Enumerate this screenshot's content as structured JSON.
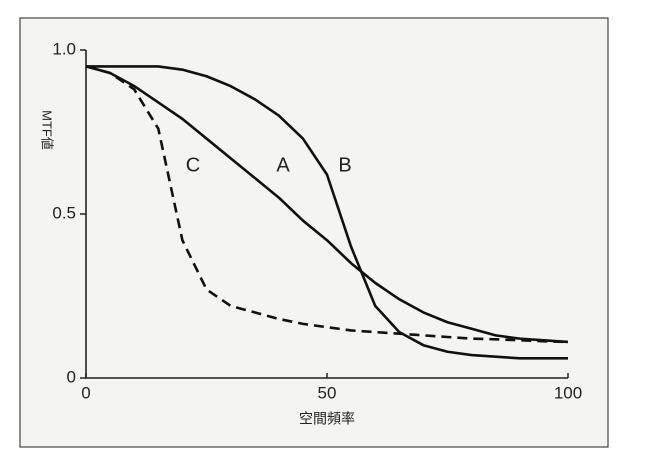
{
  "chart_data": {
    "type": "line",
    "ylabel": "MTF値",
    "xlabel": "空間頻率",
    "x": [
      0,
      5,
      10,
      15,
      20,
      25,
      30,
      35,
      40,
      45,
      50,
      55,
      60,
      65,
      70,
      75,
      80,
      85,
      90,
      95,
      100
    ],
    "series": [
      {
        "name": "A",
        "color": "#111111",
        "dash": false,
        "values": [
          0.95,
          0.93,
          0.89,
          0.84,
          0.79,
          0.73,
          0.67,
          0.61,
          0.55,
          0.48,
          0.42,
          0.35,
          0.29,
          0.24,
          0.2,
          0.17,
          0.15,
          0.13,
          0.12,
          0.115,
          0.11
        ]
      },
      {
        "name": "B",
        "color": "#111111",
        "dash": false,
        "values": [
          0.95,
          0.95,
          0.95,
          0.95,
          0.94,
          0.92,
          0.89,
          0.85,
          0.8,
          0.73,
          0.62,
          0.4,
          0.22,
          0.14,
          0.1,
          0.08,
          0.07,
          0.065,
          0.06,
          0.06,
          0.06
        ]
      },
      {
        "name": "C",
        "color": "#111111",
        "dash": true,
        "values": [
          0.95,
          0.93,
          0.88,
          0.76,
          0.42,
          0.27,
          0.22,
          0.2,
          0.18,
          0.165,
          0.155,
          0.145,
          0.14,
          0.135,
          0.13,
          0.125,
          0.12,
          0.118,
          0.115,
          0.112,
          0.11
        ]
      }
    ],
    "xlim": [
      0,
      100
    ],
    "ylim": [
      0,
      1
    ],
    "xticks": [
      0,
      50,
      100
    ],
    "yticks": [
      0,
      0.5,
      {
        "value": 1,
        "label": "1.0"
      }
    ]
  }
}
